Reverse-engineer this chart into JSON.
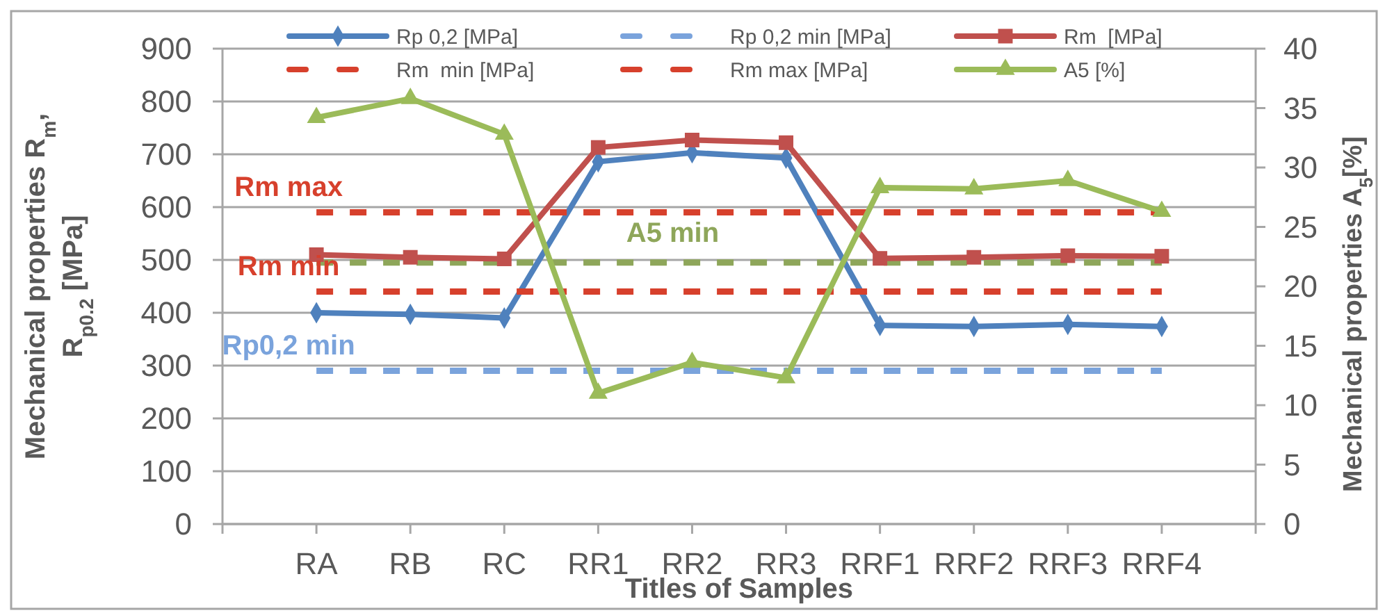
{
  "chart_data": {
    "type": "line",
    "xlabel": "Titles of Samples",
    "ylabel": "Mechanical properties R$_{m}$,\nR$_{p0.2}$ [MPa]",
    "y2label": "Mechanical properties  A$_{5}$[%]",
    "categories": [
      "RA",
      "RB",
      "RC",
      "RR1",
      "RR2",
      "RR3",
      "RRF1",
      "RRF2",
      "RRF3",
      "RRF4"
    ],
    "ylim": [
      0,
      900
    ],
    "yticks": [
      0,
      100,
      200,
      300,
      400,
      500,
      600,
      700,
      800,
      900
    ],
    "y2lim": [
      0,
      40
    ],
    "y2ticks": [
      0,
      5,
      10,
      15,
      20,
      25,
      30,
      35,
      40
    ],
    "grid": "y",
    "legend": "top",
    "series": [
      {
        "name": "Rp 0,2 [MPa]",
        "color": "#4f81bd",
        "marker": "diamond",
        "line_style": "solid",
        "values": [
          400,
          397,
          390,
          686,
          703,
          693,
          376,
          374,
          378,
          374
        ]
      },
      {
        "name": "Rp 0,2 min [MPa]",
        "color": "#7aa3dc",
        "marker": "none",
        "line_style": "dashed",
        "values": [
          290,
          290,
          290,
          290,
          290,
          290,
          290,
          290,
          290,
          290
        ]
      },
      {
        "name": "Rm  [MPa]",
        "color": "#c0504d",
        "marker": "square",
        "line_style": "solid",
        "values": [
          510,
          505,
          502,
          713,
          727,
          722,
          503,
          505,
          508,
          507
        ]
      },
      {
        "name": "Rm  min [MPa]",
        "color": "#d7402c",
        "marker": "none",
        "line_style": "dashed",
        "values": [
          440,
          440,
          440,
          440,
          440,
          440,
          440,
          440,
          440,
          440
        ]
      },
      {
        "name": "Rm max [MPa]",
        "color": "#d7402c",
        "marker": "none",
        "line_style": "dashed",
        "values": [
          590,
          590,
          590,
          590,
          590,
          590,
          590,
          590,
          590,
          590
        ]
      },
      {
        "name": "A5 [%]",
        "color": "#9bbb59",
        "marker": "triangle",
        "line_style": "solid",
        "axis": "y2",
        "values": [
          34.2,
          35.8,
          32.8,
          11,
          13.6,
          12.3,
          28.3,
          28.2,
          28.9,
          26.3
        ]
      }
    ],
    "ref_lines": [
      {
        "axis": "y2",
        "value": 22,
        "label": "A5 min",
        "color": "#8ea65a",
        "line_style": "dashed"
      }
    ],
    "annotations": [
      {
        "text": "Rm max",
        "x": "RA",
        "y": 590
      },
      {
        "text": "Rm min",
        "x": "RA",
        "y": 440
      },
      {
        "text": "Rp0,2 min",
        "x": "RA",
        "y": 290
      }
    ]
  }
}
